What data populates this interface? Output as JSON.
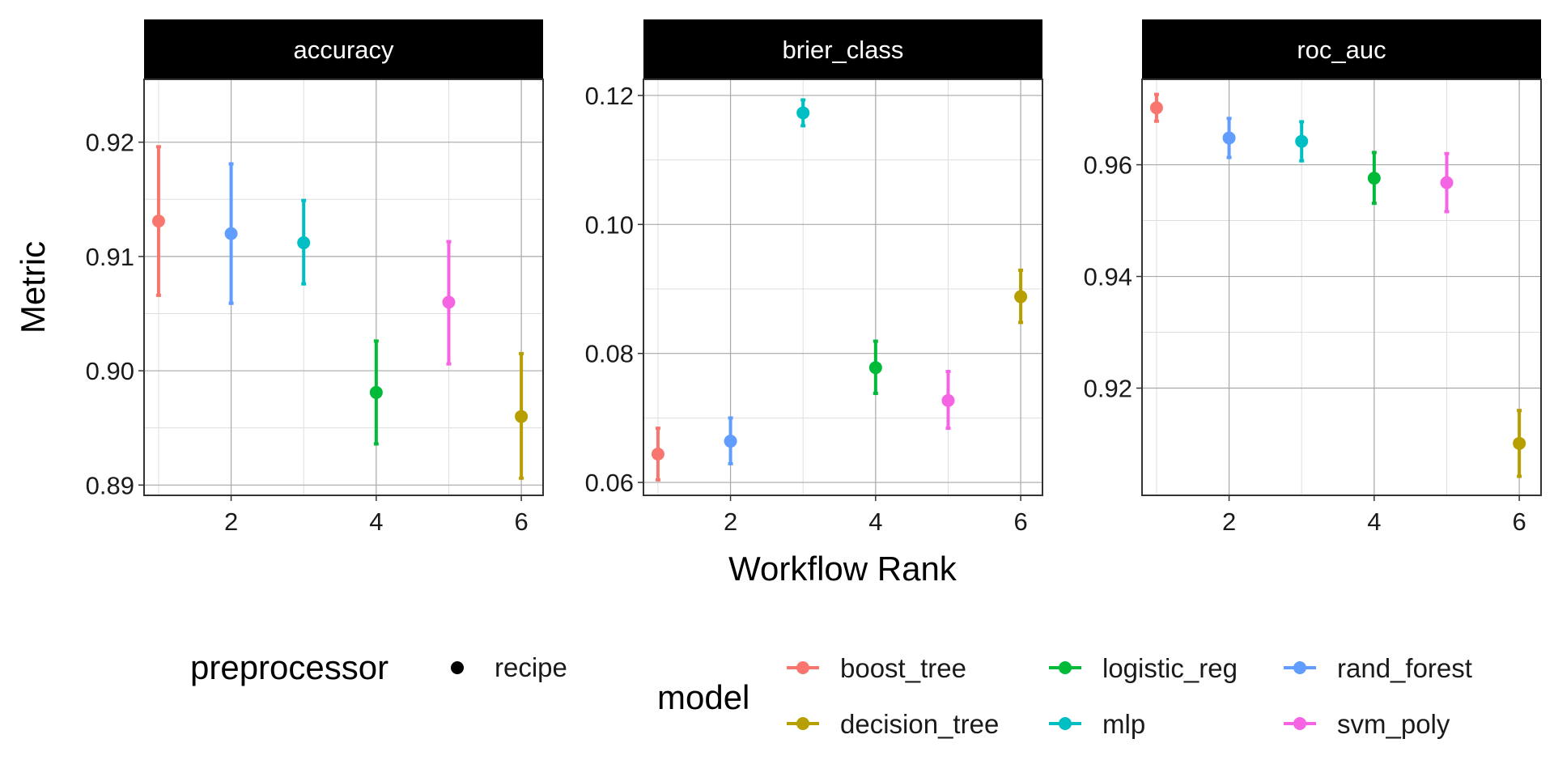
{
  "chart_data": {
    "type": "scatter",
    "facets": [
      {
        "label": "accuracy",
        "ylim": [
          0.8891,
          0.9255
        ],
        "yticks": [
          0.89,
          0.9,
          0.91,
          0.92
        ],
        "ytick_labels": [
          "0.89",
          "0.90",
          "0.91",
          "0.92"
        ],
        "points": [
          {
            "rank": 1,
            "model": "boost_tree",
            "mean": 0.9131,
            "lower": 0.9066,
            "upper": 0.9196
          },
          {
            "rank": 2,
            "model": "rand_forest",
            "mean": 0.912,
            "lower": 0.9059,
            "upper": 0.9181
          },
          {
            "rank": 3,
            "model": "mlp",
            "mean": 0.9112,
            "lower": 0.9076,
            "upper": 0.9149
          },
          {
            "rank": 4,
            "model": "logistic_reg",
            "mean": 0.8981,
            "lower": 0.8936,
            "upper": 0.9026
          },
          {
            "rank": 5,
            "model": "svm_poly",
            "mean": 0.906,
            "lower": 0.9006,
            "upper": 0.9113
          },
          {
            "rank": 6,
            "model": "decision_tree",
            "mean": 0.896,
            "lower": 0.8906,
            "upper": 0.9015
          }
        ]
      },
      {
        "label": "brier_class",
        "ylim": [
          0.058,
          0.1225
        ],
        "yticks": [
          0.06,
          0.08,
          0.1,
          0.12
        ],
        "ytick_labels": [
          "0.06",
          "0.08",
          "0.10",
          "0.12"
        ],
        "points": [
          {
            "rank": 1,
            "model": "boost_tree",
            "mean": 0.0644,
            "lower": 0.0604,
            "upper": 0.0684
          },
          {
            "rank": 2,
            "model": "rand_forest",
            "mean": 0.0664,
            "lower": 0.0629,
            "upper": 0.07
          },
          {
            "rank": 3,
            "model": "mlp",
            "mean": 0.1173,
            "lower": 0.1153,
            "upper": 0.1193
          },
          {
            "rank": 4,
            "model": "logistic_reg",
            "mean": 0.0778,
            "lower": 0.0738,
            "upper": 0.0819
          },
          {
            "rank": 5,
            "model": "svm_poly",
            "mean": 0.0727,
            "lower": 0.0684,
            "upper": 0.0772
          },
          {
            "rank": 6,
            "model": "decision_tree",
            "mean": 0.0888,
            "lower": 0.0848,
            "upper": 0.0929
          }
        ]
      },
      {
        "label": "roc_auc",
        "ylim": [
          0.9008,
          0.9753
        ],
        "yticks": [
          0.92,
          0.94,
          0.96
        ],
        "ytick_labels": [
          "0.92",
          "0.94",
          "0.96"
        ],
        "points": [
          {
            "rank": 1,
            "model": "boost_tree",
            "mean": 0.9702,
            "lower": 0.9678,
            "upper": 0.9726
          },
          {
            "rank": 2,
            "model": "rand_forest",
            "mean": 0.9648,
            "lower": 0.9613,
            "upper": 0.9683
          },
          {
            "rank": 3,
            "model": "mlp",
            "mean": 0.9642,
            "lower": 0.9607,
            "upper": 0.9677
          },
          {
            "rank": 4,
            "model": "logistic_reg",
            "mean": 0.9576,
            "lower": 0.9531,
            "upper": 0.9622
          },
          {
            "rank": 5,
            "model": "svm_poly",
            "mean": 0.9568,
            "lower": 0.9516,
            "upper": 0.962
          },
          {
            "rank": 6,
            "model": "decision_tree",
            "mean": 0.9101,
            "lower": 0.9042,
            "upper": 0.916
          }
        ]
      }
    ],
    "xlim": [
      0.8,
      6.3
    ],
    "xticks": [
      2,
      4,
      6
    ],
    "xtick_labels": [
      "2",
      "4",
      "6"
    ],
    "xlabel": "Workflow Rank",
    "ylabel": "Metric",
    "grid": true,
    "models": [
      {
        "name": "boost_tree",
        "color": "#F8766D"
      },
      {
        "name": "decision_tree",
        "color": "#B79F00"
      },
      {
        "name": "logistic_reg",
        "color": "#00BA38"
      },
      {
        "name": "mlp",
        "color": "#00BFC4"
      },
      {
        "name": "rand_forest",
        "color": "#619CFF"
      },
      {
        "name": "svm_poly",
        "color": "#F564E3"
      }
    ],
    "legend": {
      "position": "bottom",
      "preprocessor_title": "preprocessor",
      "preprocessor_items": [
        "recipe"
      ],
      "model_title": "model"
    }
  }
}
